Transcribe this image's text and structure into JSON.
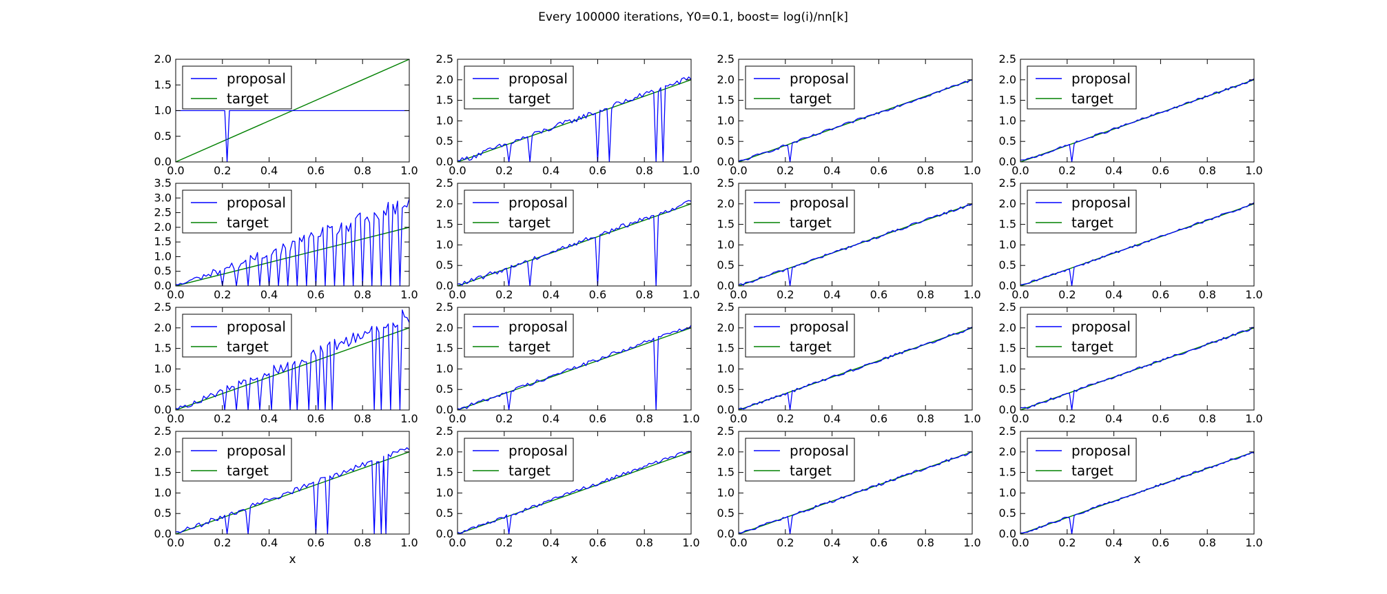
{
  "figure": {
    "suptitle": "Every 100000 iterations, Y0=0.1, boost= log(i)/nn[k]"
  },
  "chart_data": {
    "type": "line",
    "layout": "4x4 grid of subplots",
    "x_range": [
      0.0,
      1.0
    ],
    "x_ticks": [
      "0.0",
      "0.2",
      "0.4",
      "0.6",
      "0.8",
      "1.0"
    ],
    "xlabel": "x",
    "legend": {
      "placement": "upper-left",
      "entries": [
        {
          "name": "proposal",
          "color": "#0000ff"
        },
        {
          "name": "target",
          "color": "#008000"
        }
      ]
    },
    "series_colors": {
      "proposal": "#0000ff",
      "target": "#008000"
    },
    "target_line": {
      "x": [
        0.0,
        1.0
      ],
      "y": [
        0.0,
        2.0
      ]
    },
    "subplots": [
      {
        "row": 0,
        "col": 0,
        "ylim": [
          0,
          2.0
        ],
        "yticks": [
          "0.0",
          "0.5",
          "1.0",
          "1.5",
          "2.0"
        ],
        "proposal": {
          "x": [
            0.0,
            0.21,
            0.215,
            0.22,
            0.225,
            0.23,
            1.0
          ],
          "y": [
            1.0,
            1.0,
            0.5,
            0.0,
            0.5,
            1.0,
            1.0
          ]
        }
      },
      {
        "row": 0,
        "col": 1,
        "ylim": [
          0,
          2.5
        ],
        "yticks": [
          "0.0",
          "0.5",
          "1.0",
          "1.5",
          "2.0",
          "2.5"
        ],
        "noise": 0.07,
        "spikes": [
          0.22,
          0.31,
          0.6,
          0.65,
          0.85,
          0.88
        ],
        "trend": 2.05
      },
      {
        "row": 0,
        "col": 2,
        "ylim": [
          0,
          2.5
        ],
        "yticks": [
          "0.0",
          "0.5",
          "1.0",
          "1.5",
          "2.0",
          "2.5"
        ],
        "noise": 0.035,
        "spikes": [
          0.22
        ],
        "trend": 2.0
      },
      {
        "row": 0,
        "col": 3,
        "ylim": [
          0,
          2.5
        ],
        "yticks": [
          "0.0",
          "0.5",
          "1.0",
          "1.5",
          "2.0",
          "2.5"
        ],
        "noise": 0.03,
        "spikes": [
          0.22
        ],
        "trend": 2.0
      },
      {
        "row": 1,
        "col": 0,
        "ylim": [
          0,
          3.5
        ],
        "yticks": [
          "0.0",
          "0.5",
          "1.0",
          "1.5",
          "2.0",
          "2.5",
          "3.0",
          "3.5"
        ],
        "noise": 0.15,
        "spikes": [
          0.2,
          0.26,
          0.31,
          0.36,
          0.4,
          0.44,
          0.48,
          0.52,
          0.56,
          0.6,
          0.64,
          0.68,
          0.72,
          0.76,
          0.8,
          0.84,
          0.88,
          0.92,
          0.96
        ],
        "trend": 2.8
      },
      {
        "row": 1,
        "col": 1,
        "ylim": [
          0,
          2.5
        ],
        "yticks": [
          "0.0",
          "0.5",
          "1.0",
          "1.5",
          "2.0",
          "2.5"
        ],
        "noise": 0.06,
        "spikes": [
          0.22,
          0.31,
          0.6,
          0.85
        ],
        "trend": 2.05
      },
      {
        "row": 1,
        "col": 2,
        "ylim": [
          0,
          2.5
        ],
        "yticks": [
          "0.0",
          "0.5",
          "1.0",
          "1.5",
          "2.0",
          "2.5"
        ],
        "noise": 0.035,
        "spikes": [
          0.22
        ],
        "trend": 2.0
      },
      {
        "row": 1,
        "col": 3,
        "ylim": [
          0,
          2.5
        ],
        "yticks": [
          "0.0",
          "0.5",
          "1.0",
          "1.5",
          "2.0",
          "2.5"
        ],
        "noise": 0.03,
        "spikes": [
          0.22
        ],
        "trend": 2.0
      },
      {
        "row": 2,
        "col": 0,
        "ylim": [
          0,
          2.5
        ],
        "yticks": [
          "0.0",
          "0.5",
          "1.0",
          "1.5",
          "2.0",
          "2.5"
        ],
        "noise": 0.1,
        "spikes": [
          0.21,
          0.26,
          0.31,
          0.36,
          0.41,
          0.49,
          0.52,
          0.57,
          0.61,
          0.64,
          0.67,
          0.85,
          0.88,
          0.92,
          0.96
        ],
        "trend": 2.3
      },
      {
        "row": 2,
        "col": 1,
        "ylim": [
          0,
          2.5
        ],
        "yticks": [
          "0.0",
          "0.5",
          "1.0",
          "1.5",
          "2.0",
          "2.5"
        ],
        "noise": 0.05,
        "spikes": [
          0.22,
          0.85
        ],
        "trend": 2.05
      },
      {
        "row": 2,
        "col": 2,
        "ylim": [
          0,
          2.5
        ],
        "yticks": [
          "0.0",
          "0.5",
          "1.0",
          "1.5",
          "2.0",
          "2.5"
        ],
        "noise": 0.035,
        "spikes": [
          0.22
        ],
        "trend": 2.0
      },
      {
        "row": 2,
        "col": 3,
        "ylim": [
          0,
          2.5
        ],
        "yticks": [
          "0.0",
          "0.5",
          "1.0",
          "1.5",
          "2.0",
          "2.5"
        ],
        "noise": 0.03,
        "spikes": [
          0.22
        ],
        "trend": 2.0
      },
      {
        "row": 3,
        "col": 0,
        "ylim": [
          0,
          2.5
        ],
        "yticks": [
          "0.0",
          "0.5",
          "1.0",
          "1.5",
          "2.0",
          "2.5"
        ],
        "noise": 0.07,
        "spikes": [
          0.22,
          0.31,
          0.6,
          0.65,
          0.85,
          0.88,
          0.9
        ],
        "trend": 2.1
      },
      {
        "row": 3,
        "col": 1,
        "ylim": [
          0,
          2.5
        ],
        "yticks": [
          "0.0",
          "0.5",
          "1.0",
          "1.5",
          "2.0",
          "2.5"
        ],
        "noise": 0.045,
        "spikes": [
          0.22
        ],
        "trend": 2.05
      },
      {
        "row": 3,
        "col": 2,
        "ylim": [
          0,
          2.5
        ],
        "yticks": [
          "0.0",
          "0.5",
          "1.0",
          "1.5",
          "2.0",
          "2.5"
        ],
        "noise": 0.035,
        "spikes": [
          0.22
        ],
        "trend": 2.0
      },
      {
        "row": 3,
        "col": 3,
        "ylim": [
          0,
          2.5
        ],
        "yticks": [
          "0.0",
          "0.5",
          "1.0",
          "1.5",
          "2.0",
          "2.5"
        ],
        "noise": 0.03,
        "spikes": [
          0.22
        ],
        "trend": 2.0
      }
    ]
  }
}
